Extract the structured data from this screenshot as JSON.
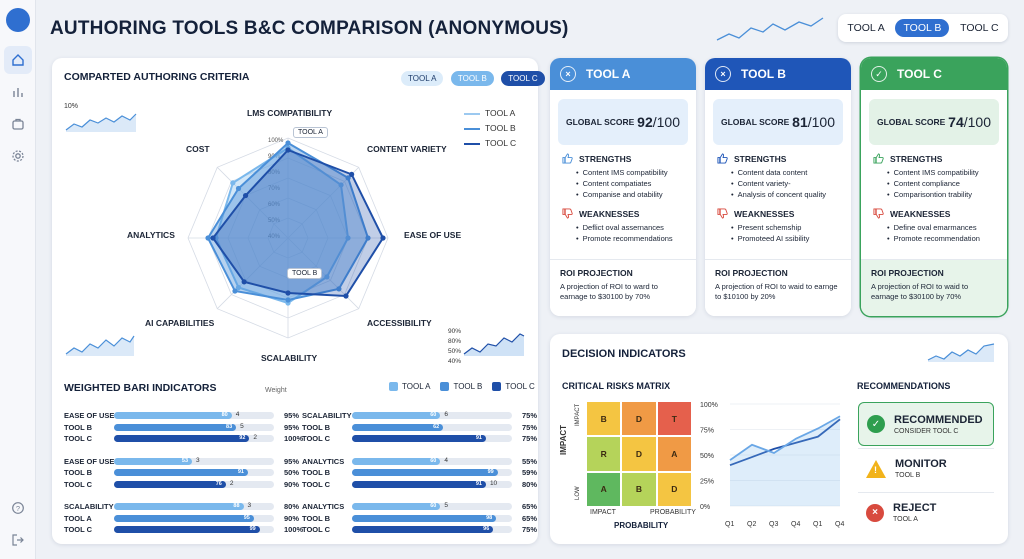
{
  "page": {
    "title": "AUTHORING TOOLS B&C COMPARISON (ANONYMOUS)"
  },
  "sidebar": {
    "items": [
      "home",
      "chart",
      "briefcase",
      "settings"
    ],
    "bottom": [
      "help",
      "logout"
    ]
  },
  "header_toggle": {
    "options": [
      "TOOL A",
      "TOOL B",
      "TOOL C"
    ],
    "selected": "TOOL B"
  },
  "criteria": {
    "title": "COMPARTED AUTHORING CRITERIA",
    "chips": [
      "TOOL A",
      "TOOL B",
      "TOOL C"
    ],
    "legend": [
      "TOOL A",
      "TOOL B",
      "TOOL C"
    ],
    "axes": [
      "LMS COMPATIBILITY",
      "CONTENT VARIETY",
      "EASE OF USE",
      "ACCESSIBILITY",
      "SCALABILITY",
      "AI CAPABILITIES",
      "ANALYTICS",
      "COST"
    ],
    "ticks": [
      "100%",
      "90%",
      "80%",
      "70%",
      "60%",
      "50%",
      "40%"
    ],
    "tags": {
      "top": "TOOL A",
      "mid": "TOOL B"
    },
    "mini_left": "10%",
    "mini_right": [
      "90%",
      "80%",
      "50%",
      "40%"
    ],
    "series": [
      {
        "name": "TOOL A",
        "values": [
          90,
          75,
          60,
          55,
          65,
          70,
          72,
          78
        ]
      },
      {
        "name": "TOOL B",
        "values": [
          95,
          85,
          80,
          72,
          62,
          75,
          80,
          70
        ]
      },
      {
        "name": "TOOL C",
        "values": [
          88,
          90,
          95,
          82,
          55,
          62,
          75,
          60
        ]
      }
    ]
  },
  "weighted": {
    "title": "WEIGHTED BARI INDICATORS",
    "weight_label": "Weight",
    "legend": [
      "TOOL A",
      "TOOL B",
      "TOOL C"
    ],
    "left": [
      {
        "group": "EASE OF USE",
        "rows": [
          {
            "label": "EASE OF USE",
            "value": 80,
            "num": "4",
            "pct": "95%"
          },
          {
            "label": "TOOL B",
            "value": 83,
            "num": "5",
            "pct": "95%"
          },
          {
            "label": "TOOL C",
            "value": 92,
            "num": "2",
            "pct": "100%"
          }
        ]
      },
      {
        "group": "EASE OF USE",
        "rows": [
          {
            "label": "EASE OF USE",
            "value": 53,
            "num": "3",
            "pct": "95%"
          },
          {
            "label": "TOOL B",
            "value": 91,
            "num": "",
            "pct": "50%"
          },
          {
            "label": "TOOL C",
            "value": 76,
            "num": "2",
            "pct": "90%"
          }
        ]
      },
      {
        "group": "SCALABILITY",
        "rows": [
          {
            "label": "SCALABILITY",
            "value": 88,
            "num": "3",
            "pct": "80%"
          },
          {
            "label": "TOOL A",
            "value": 95,
            "num": "",
            "pct": "90%"
          },
          {
            "label": "TOOL C",
            "value": 99,
            "num": "",
            "pct": "100%"
          }
        ]
      }
    ],
    "right": [
      {
        "group": "SCALABILITY",
        "rows": [
          {
            "label": "SCALABILITY",
            "value": 60,
            "num": "6",
            "pct": "75%"
          },
          {
            "label": "TOOL B",
            "value": 62,
            "num": "",
            "pct": "75%"
          },
          {
            "label": "TOOL C",
            "value": 91,
            "num": "",
            "pct": "75%"
          }
        ]
      },
      {
        "group": "ANALYTICS",
        "rows": [
          {
            "label": "ANALYTICS",
            "value": 60,
            "num": "4",
            "pct": "55%"
          },
          {
            "label": "TOOL B",
            "value": 99,
            "num": "",
            "pct": "59%"
          },
          {
            "label": "TOOL C",
            "value": 91,
            "num": "10",
            "pct": "80%"
          }
        ]
      },
      {
        "group": "ANALYTICS",
        "rows": [
          {
            "label": "ANALYTICS",
            "value": 60,
            "num": "5",
            "pct": "65%"
          },
          {
            "label": "TOOL B",
            "value": 98,
            "num": "",
            "pct": "65%"
          },
          {
            "label": "TOOL C",
            "value": 96,
            "num": "",
            "pct": "75%"
          }
        ]
      }
    ]
  },
  "tools": [
    {
      "name": "TOOL A",
      "color": "#4a8fd8",
      "icon": "close-circle-icon",
      "score_label": "GLOBAL SCORE",
      "score": "92",
      "score_suffix": "/100",
      "strengths_title": "STRENGTHS",
      "strengths": [
        "Content IMS compatibility",
        "Content compatiates",
        "Companise and otability"
      ],
      "weaknesses_title": "WEAKNESSES",
      "weaknesses": [
        "Deflict oval assernances",
        "Promote recommendations"
      ],
      "roi_title": "ROI PROJECTION",
      "roi_text": "A projection of ROI to ward to earnage to $30100 by 70%"
    },
    {
      "name": "TOOL B",
      "color": "#1f56b8",
      "icon": "close-circle-icon",
      "score_label": "GLOBAL SCORE",
      "score": "81",
      "score_suffix": "/100",
      "strengths_title": "STRENGTHS",
      "strengths": [
        "Content data content",
        "Content variety-",
        "Analysis of concent quality"
      ],
      "weaknesses_title": "WEAKNESSES",
      "weaknesses": [
        "Present schemship",
        "Promoteed AI ssibility"
      ],
      "roi_title": "ROI PROJECTION",
      "roi_text": "A projection of ROI to waid to earnge to $10100 by 20%"
    },
    {
      "name": "TOOL C",
      "color": "#3aa35c",
      "icon": "check-circle-icon",
      "score_label": "GLOBAL SCORE",
      "score": "74",
      "score_suffix": "/100",
      "strengths_title": "STRENGTHS",
      "strengths": [
        "Content IMS compatibility",
        "Content compliance",
        "Comparisontion trability"
      ],
      "weaknesses_title": "WEAKNESSES",
      "weaknesses": [
        "Define oval emarmances",
        "Promote recommendation"
      ],
      "roi_title": "ROI PROJECTION",
      "roi_text": "A projection of ROI to waid to earnage to $30100 by 70%"
    }
  ],
  "decision": {
    "title": "DECISION INDICATORS",
    "matrix_title": "CRITICAL RISKS MATRIX",
    "matrix": [
      "B",
      "D",
      "T",
      "R",
      "D",
      "A",
      "A",
      "B",
      "D"
    ],
    "matrix_colors": [
      "#f4c542",
      "#f09a45",
      "#e5604c",
      "#b5d35a",
      "#f4c542",
      "#f09a45",
      "#5fb85f",
      "#b5d35a",
      "#f4c542"
    ],
    "impact_label": "IMPACT",
    "impact_small": "IMPACT",
    "low_label": "LOW",
    "x_low": "IMPACT",
    "x_high": "PROBABILITY",
    "probability_label": "PROBABILITY",
    "line_y_ticks": [
      "100%",
      "75%",
      "50%",
      "25%",
      "0%"
    ],
    "line_x_ticks": [
      "Q1",
      "Q2",
      "Q3",
      "Q4",
      "Q1",
      "Q4"
    ],
    "line_series": [
      {
        "values": [
          40,
          48,
          56,
          62,
          68,
          85
        ]
      },
      {
        "values": [
          45,
          60,
          52,
          66,
          76,
          88
        ]
      }
    ],
    "rec_title": "RECOMMENDATIONS",
    "recs": [
      {
        "label": "RECOMMENDED",
        "sub": "CONSIDER TOOL C",
        "color": "#2e9e4e",
        "icon": "check-icon"
      },
      {
        "label": "MONITOR",
        "sub": "TOOL B",
        "color": "#f2b31a",
        "icon": "warning-icon"
      },
      {
        "label": "REJECT",
        "sub": "TOOL A",
        "color": "#d84a3e",
        "icon": "x-icon"
      }
    ]
  },
  "colors": {
    "toolA": "#7ab8ec",
    "toolB": "#4a8fd8",
    "toolC": "#1f4fa8",
    "accent": "#2f6fd0"
  }
}
